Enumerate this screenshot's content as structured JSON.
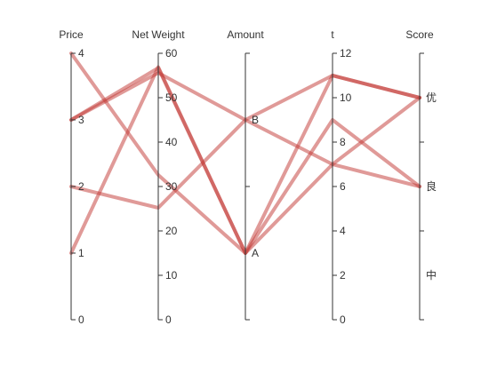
{
  "chart_data": {
    "type": "parallel",
    "title": "",
    "line_color": "#c23531",
    "axes": [
      {
        "name": "Price",
        "kind": "value",
        "range": [
          0,
          4
        ],
        "ticks": [
          0,
          1,
          2,
          3,
          4
        ]
      },
      {
        "name": "Net Weight",
        "kind": "value",
        "range": [
          0,
          60
        ],
        "ticks": [
          0,
          10,
          20,
          30,
          40,
          50,
          60
        ]
      },
      {
        "name": "Amount",
        "kind": "category",
        "categories": [
          "A",
          "B"
        ]
      },
      {
        "name": "t",
        "kind": "value",
        "range": [
          0,
          12
        ],
        "ticks": [
          0,
          2,
          4,
          6,
          8,
          10,
          12
        ]
      },
      {
        "name": "Score",
        "kind": "category",
        "categories": [
          "中",
          "良",
          "优"
        ]
      }
    ],
    "rows": [
      [
        4,
        32.6,
        "A",
        9,
        "良"
      ],
      [
        3,
        56.7,
        "A",
        11,
        "优"
      ],
      [
        3,
        55.6,
        "B",
        7,
        "良"
      ],
      [
        2,
        25.2,
        "B",
        11,
        "优"
      ],
      [
        1,
        56.9,
        "A",
        7,
        "优"
      ]
    ]
  }
}
